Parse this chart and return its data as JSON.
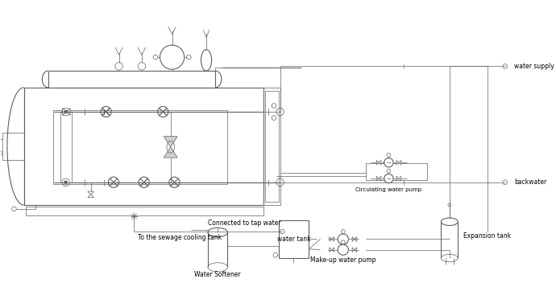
{
  "bg_color": "#ffffff",
  "lc": "#606060",
  "lc2": "#808080",
  "lw": 0.8,
  "lw_t": 0.5,
  "figsize": [
    6.9,
    3.57
  ],
  "dpi": 100,
  "labels": {
    "water_supply": "water supply",
    "backwater": "backwater",
    "circulating_pump": "Circulating water pump",
    "to_sewage": "To the sewage cooling tank",
    "connected_tap": "Connected to tap water",
    "water_softener": "Water Softener",
    "water_tank": "water tank",
    "makeup_pump": "Make-up water pump",
    "expansion_tank": "Expansion tank"
  }
}
